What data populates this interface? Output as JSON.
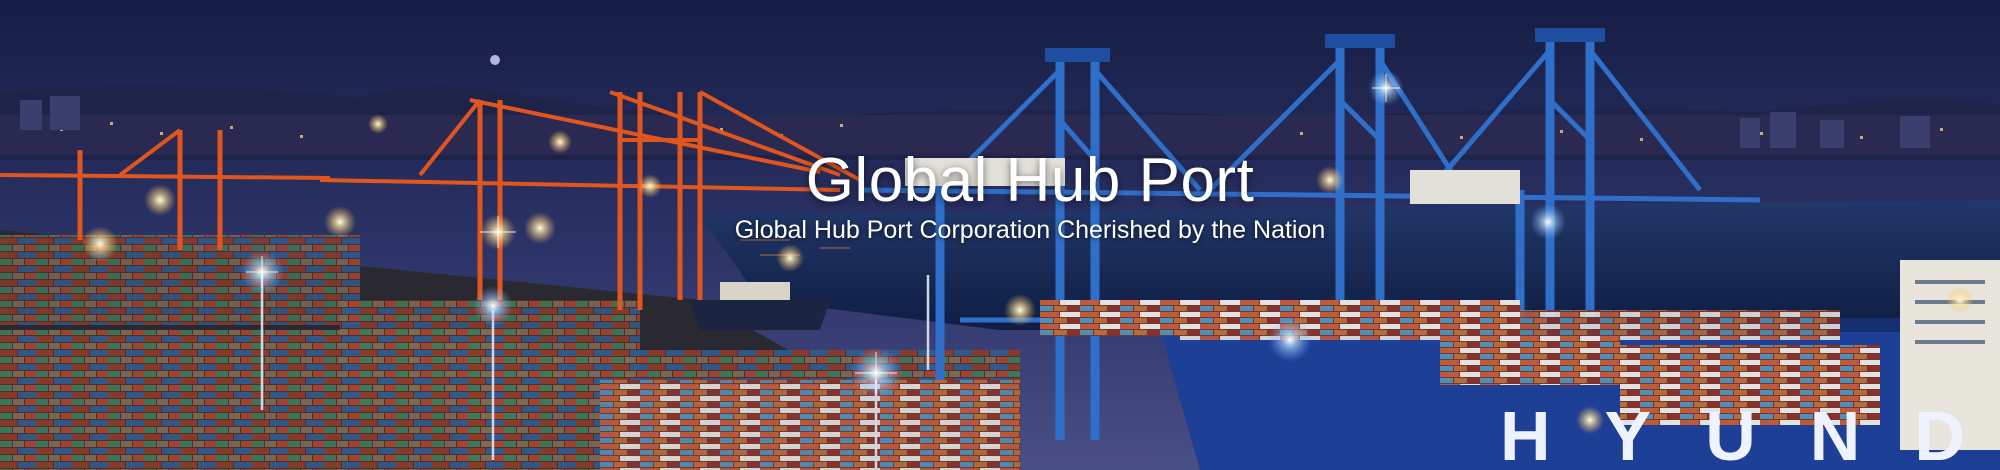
{
  "banner": {
    "title": "Global Hub Port",
    "subtitle": "Global Hub Port Corporation Cherished by the Nation",
    "ship_lettering": "HYUNDAI"
  },
  "colors": {
    "sky_top": "#1b2550",
    "sky_horizon": "#4a4f86",
    "water": "#1a2f5c",
    "orange_crane": "#e0561e",
    "blue_crane": "#2f6fc9",
    "ship_hull": "#1d3f95",
    "light_glow": "#fff3c4"
  }
}
